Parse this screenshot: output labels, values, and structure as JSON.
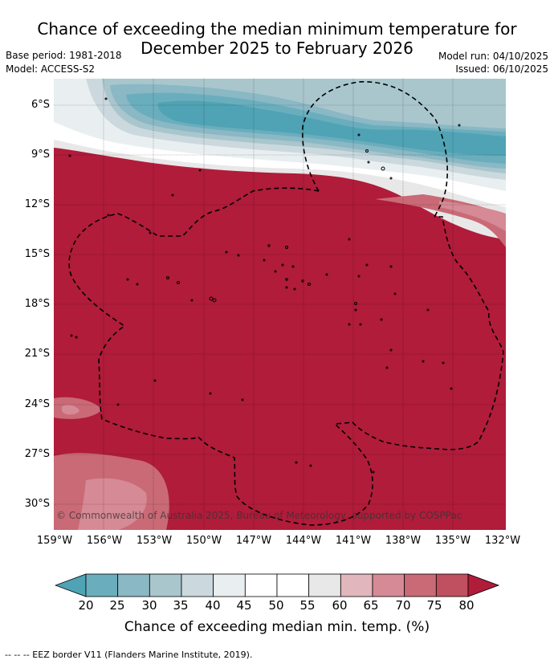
{
  "title": {
    "line1": "Chance of exceeding the median minimum temperature for",
    "line2": "December 2025 to February 2026"
  },
  "meta": {
    "base_period": "Base period: 1981-2018",
    "model": "Model: ACCESS-S2",
    "model_run": "Model run: 04/10/2025",
    "issued": "Issued: 06/10/2025"
  },
  "map": {
    "lat_labels": [
      "6°S",
      "9°S",
      "12°S",
      "15°S",
      "18°S",
      "21°S",
      "24°S",
      "27°S",
      "30°S"
    ],
    "lon_labels": [
      "159°W",
      "156°W",
      "153°W",
      "150°W",
      "147°W",
      "144°W",
      "141°W",
      "138°W",
      "135°W",
      "132°W"
    ],
    "copyright": "© Commonwealth of Australia 2025, Bureau of Meteorology, supported by COSPPac"
  },
  "colorbar": {
    "ticks": [
      "20",
      "25",
      "30",
      "35",
      "40",
      "45",
      "50",
      "55",
      "60",
      "65",
      "70",
      "75",
      "80"
    ],
    "label": "Chance of exceeding median min. temp. (%)",
    "colors": [
      "#4fa3b4",
      "#6aaebd",
      "#8ab8c4",
      "#a9c6cd",
      "#cbd9de",
      "#e9eff1",
      "#ffffff",
      "#ffffff",
      "#e8e8e8",
      "#e2b6bd",
      "#d58a95",
      "#c96a76",
      "#c0505f",
      "#b01c3a"
    ],
    "low_color": "#4fa3b4",
    "high_color": "#b01c3a"
  },
  "legend": {
    "eez_marker": "-- -- -- EEZ border V11 (Flanders Marine Institute, 2019)."
  }
}
